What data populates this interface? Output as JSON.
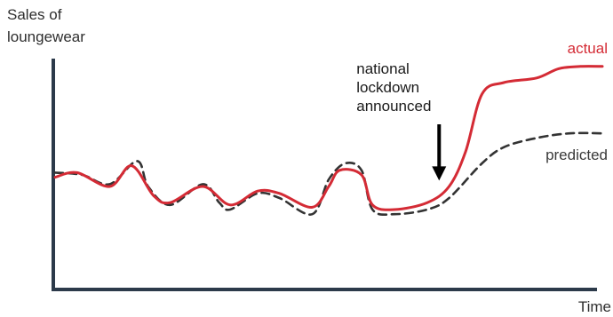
{
  "chart_data": {
    "type": "line",
    "title": "",
    "xlabel": "Time",
    "ylabel_lines": [
      "Sales of",
      "loungewear"
    ],
    "xlim": [
      0,
      100
    ],
    "ylim": [
      0,
      100
    ],
    "grid": false,
    "legend": "inline-right",
    "series": [
      {
        "name": "actual",
        "style": "solid",
        "color": "#d42b35",
        "points": [
          [
            0,
            44
          ],
          [
            4,
            46
          ],
          [
            10,
            40
          ],
          [
            14,
            49
          ],
          [
            18,
            36
          ],
          [
            21,
            33
          ],
          [
            27,
            40
          ],
          [
            32,
            32
          ],
          [
            37,
            38
          ],
          [
            41,
            37
          ],
          [
            47,
            31
          ],
          [
            50,
            40
          ],
          [
            52,
            47
          ],
          [
            56,
            45
          ],
          [
            58,
            32
          ],
          [
            62,
            30
          ],
          [
            68,
            33
          ],
          [
            72,
            40
          ],
          [
            75,
            55
          ],
          [
            78,
            80
          ],
          [
            82,
            85
          ],
          [
            88,
            87
          ],
          [
            92,
            91
          ],
          [
            96,
            92
          ],
          [
            100,
            92
          ]
        ]
      },
      {
        "name": "predicted",
        "style": "dashed",
        "color": "#333333",
        "points": [
          [
            0,
            46
          ],
          [
            5,
            45
          ],
          [
            10,
            41
          ],
          [
            15,
            51
          ],
          [
            17,
            40
          ],
          [
            21,
            32
          ],
          [
            27,
            41
          ],
          [
            30,
            33
          ],
          [
            32,
            30
          ],
          [
            37,
            37
          ],
          [
            41,
            35
          ],
          [
            47,
            28
          ],
          [
            50,
            43
          ],
          [
            53,
            50
          ],
          [
            56,
            47
          ],
          [
            58,
            30
          ],
          [
            62,
            28
          ],
          [
            68,
            30
          ],
          [
            72,
            35
          ],
          [
            78,
            50
          ],
          [
            82,
            57
          ],
          [
            88,
            61
          ],
          [
            94,
            63
          ],
          [
            100,
            63
          ]
        ]
      }
    ],
    "annotations": [
      {
        "lines": [
          "national",
          "lockdown",
          "announced"
        ],
        "x": 70.5,
        "y": 41,
        "arrow": "down"
      }
    ]
  }
}
